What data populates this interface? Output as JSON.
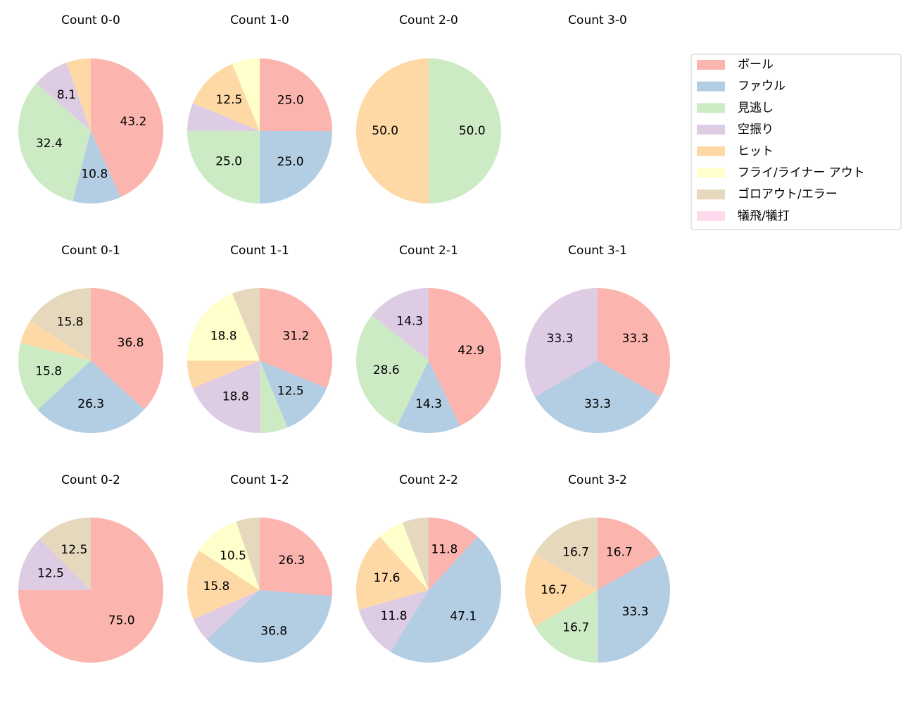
{
  "legend": {
    "categories": [
      "ボール",
      "ファウル",
      "見逃し",
      "空振り",
      "ヒット",
      "フライ/ライナー アウト",
      "ゴロアウト/エラー",
      "犠飛/犠打"
    ],
    "colors": [
      "#fbb4ae",
      "#b3cde3",
      "#ccebc5",
      "#decbe4",
      "#fed9a6",
      "#ffffcc",
      "#e5d8bd",
      "#fddaec"
    ]
  },
  "chart_data": [
    {
      "type": "pie",
      "title": "Count 0-0",
      "values": [
        43.2,
        10.8,
        32.4,
        8.1,
        5.4,
        0,
        0,
        0
      ],
      "value_labels": [
        "43.2",
        "10.8",
        "32.4",
        "8.1",
        null,
        null,
        null,
        null
      ]
    },
    {
      "type": "pie",
      "title": "Count 1-0",
      "values": [
        25.0,
        25.0,
        25.0,
        6.2,
        12.5,
        6.2,
        0,
        0
      ],
      "value_labels": [
        "25.0",
        "25.0",
        "25.0",
        null,
        "12.5",
        null,
        null,
        null
      ]
    },
    {
      "type": "pie",
      "title": "Count 2-0",
      "values": [
        0,
        0,
        50.0,
        0,
        50.0,
        0,
        0,
        0
      ],
      "value_labels": [
        null,
        null,
        "50.0",
        null,
        "50.0",
        null,
        null,
        null
      ]
    },
    {
      "type": "pie",
      "title": "Count 3-0",
      "values": [
        0,
        0,
        0,
        0,
        0,
        0,
        0,
        0
      ],
      "value_labels": [
        null,
        null,
        null,
        null,
        null,
        null,
        null,
        null
      ]
    },
    {
      "type": "pie",
      "title": "Count 0-1",
      "values": [
        36.8,
        26.3,
        15.8,
        0,
        5.3,
        0,
        15.8,
        0
      ],
      "value_labels": [
        "36.8",
        "26.3",
        "15.8",
        null,
        null,
        null,
        "15.8",
        null
      ]
    },
    {
      "type": "pie",
      "title": "Count 1-1",
      "values": [
        31.2,
        12.5,
        6.2,
        18.8,
        6.2,
        18.8,
        6.2,
        0
      ],
      "value_labels": [
        "31.2",
        "12.5",
        null,
        "18.8",
        null,
        "18.8",
        null,
        null
      ]
    },
    {
      "type": "pie",
      "title": "Count 2-1",
      "values": [
        42.9,
        14.3,
        28.6,
        14.3,
        0,
        0,
        0,
        0
      ],
      "value_labels": [
        "42.9",
        "14.3",
        "28.6",
        "14.3",
        null,
        null,
        null,
        null
      ]
    },
    {
      "type": "pie",
      "title": "Count 3-1",
      "values": [
        33.3,
        33.3,
        0,
        33.3,
        0,
        0,
        0,
        0
      ],
      "value_labels": [
        "33.3",
        "33.3",
        null,
        "33.3",
        null,
        null,
        null,
        null
      ]
    },
    {
      "type": "pie",
      "title": "Count 0-2",
      "values": [
        75.0,
        0,
        0,
        12.5,
        0,
        0,
        12.5,
        0
      ],
      "value_labels": [
        "75.0",
        null,
        null,
        "12.5",
        null,
        null,
        "12.5",
        null
      ]
    },
    {
      "type": "pie",
      "title": "Count 1-2",
      "values": [
        26.3,
        36.8,
        0,
        5.3,
        15.8,
        10.5,
        5.3,
        0
      ],
      "value_labels": [
        "26.3",
        "36.8",
        null,
        null,
        "15.8",
        "10.5",
        null,
        null
      ]
    },
    {
      "type": "pie",
      "title": "Count 2-2",
      "values": [
        11.8,
        47.1,
        0,
        11.8,
        17.6,
        5.9,
        5.9,
        0
      ],
      "value_labels": [
        "11.8",
        "47.1",
        null,
        "11.8",
        "17.6",
        null,
        null,
        null
      ]
    },
    {
      "type": "pie",
      "title": "Count 3-2",
      "values": [
        16.7,
        33.3,
        16.7,
        0,
        16.7,
        0,
        16.7,
        0
      ],
      "value_labels": [
        "16.7",
        "33.3",
        "16.7",
        null,
        "16.7",
        null,
        "16.7",
        null
      ]
    }
  ]
}
